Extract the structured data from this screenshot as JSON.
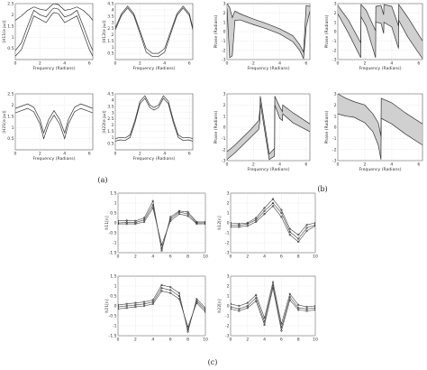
{
  "figure": {
    "captions": [
      "(a)",
      "(b)",
      "(c)"
    ]
  },
  "chart_data": [
    {
      "id": "a1",
      "type": "line",
      "group": "(a)",
      "title": "",
      "xlabel": "Frequency (Radians)",
      "ylabel": "|H11(e jω)|",
      "xlim": [
        0,
        6.28
      ],
      "ylim": [
        0,
        2.5
      ],
      "xticks": [
        0,
        2,
        4,
        6
      ],
      "yticks": [
        0.5,
        1,
        1.5,
        2,
        2.5
      ],
      "grid": true,
      "x": [
        0,
        0.5,
        1,
        1.5,
        2,
        2.5,
        3,
        3.14,
        3.5,
        4,
        4.5,
        5,
        5.5,
        6,
        6.28
      ],
      "series": [
        {
          "values": [
            1.75,
            1.95,
            2.2,
            2.35,
            2.25,
            2.2,
            2.45,
            2.5,
            2.45,
            2.2,
            2.25,
            2.35,
            2.2,
            1.95,
            1.75
          ]
        },
        {
          "values": [
            0.4,
            0.75,
            1.5,
            2.2,
            2.0,
            1.9,
            2.25,
            2.3,
            2.25,
            1.9,
            2.0,
            2.2,
            1.5,
            0.75,
            0.4
          ]
        },
        {
          "values": [
            0.15,
            0.45,
            1.2,
            1.95,
            1.8,
            1.65,
            2.05,
            2.1,
            2.05,
            1.65,
            1.8,
            1.95,
            1.2,
            0.45,
            0.15
          ]
        }
      ]
    },
    {
      "id": "a2",
      "type": "line",
      "group": "(a)",
      "title": "",
      "xlabel": "Frequency (Radians)",
      "ylabel": "|H12(e jω)|",
      "xlim": [
        0,
        6.28
      ],
      "ylim": [
        0,
        4.5
      ],
      "xticks": [
        0,
        2,
        4,
        6
      ],
      "yticks": [
        0.5,
        1,
        1.5,
        2,
        2.5,
        3,
        3.5,
        4,
        4.5
      ],
      "grid": true,
      "x": [
        0,
        0.5,
        1,
        1.5,
        2,
        2.5,
        3,
        3.5,
        4,
        4.5,
        5,
        5.5,
        6,
        6.28
      ],
      "series": [
        {
          "values": [
            2.55,
            3.7,
            4.3,
            3.7,
            2.3,
            0.9,
            0.5,
            0.5,
            0.9,
            2.3,
            3.7,
            4.3,
            3.7,
            2.55
          ]
        },
        {
          "values": [
            2.4,
            3.55,
            4.15,
            3.55,
            2.1,
            0.6,
            0.25,
            0.25,
            0.6,
            2.1,
            3.55,
            4.15,
            3.55,
            2.4
          ]
        }
      ]
    },
    {
      "id": "b1",
      "type": "area",
      "group": "(b)",
      "title": "",
      "xlabel": "Frequency (Radians)",
      "ylabel": "Phase (Radians)",
      "xlim": [
        0,
        6.28
      ],
      "ylim": [
        -3,
        3
      ],
      "xticks": [
        0,
        2,
        4,
        6
      ],
      "yticks": [
        -3,
        -2,
        -1,
        0,
        1,
        2,
        3
      ],
      "grid": true,
      "x": [
        0,
        0.2,
        0.4,
        0.6,
        1,
        2,
        3,
        4,
        5,
        5.5,
        5.8,
        6.0,
        6.28
      ],
      "series": [
        {
          "name": "upper",
          "values": [
            3,
            2.6,
            1.5,
            2.2,
            1.9,
            1.35,
            0.85,
            0.3,
            -0.45,
            -1.4,
            -2.2,
            2.8,
            2.7
          ]
        },
        {
          "name": "lower",
          "values": [
            2.5,
            -2.8,
            -2.6,
            1.2,
            1.25,
            0.75,
            0.3,
            -0.25,
            -1.1,
            -2.0,
            -2.9,
            0.5,
            2.2
          ]
        }
      ]
    },
    {
      "id": "b2",
      "type": "area",
      "group": "(b)",
      "title": "",
      "xlabel": "Frequency (Radians)",
      "ylabel": "Phase (Radians)",
      "xlim": [
        0,
        6.28
      ],
      "ylim": [
        -3,
        3
      ],
      "xticks": [
        0,
        2,
        4,
        6
      ],
      "yticks": [
        -3,
        -2,
        -1,
        0,
        1,
        2,
        3
      ],
      "grid": true,
      "x": [
        0,
        0.8,
        1.7,
        1.72,
        2.1,
        2.8,
        2.82,
        3.2,
        3.4,
        3.42,
        4,
        4.5,
        4.52,
        5.2,
        6.28
      ],
      "series": [
        {
          "name": "upper",
          "values": [
            2.8,
            1.2,
            -1.2,
            2.9,
            2.3,
            0.1,
            2.7,
            2.8,
            1.8,
            2.9,
            2.7,
            0.6,
            2.9,
            1.5,
            -1.0
          ]
        },
        {
          "name": "lower",
          "values": [
            1.9,
            -0.2,
            -2.8,
            1.6,
            0.6,
            -2.8,
            1.0,
            0.9,
            -0.2,
            1.0,
            0.5,
            -1.8,
            1.2,
            -0.6,
            -2.9
          ]
        }
      ]
    },
    {
      "id": "a3",
      "type": "line",
      "group": "(a)",
      "title": "",
      "xlabel": "Frequency (Radians)",
      "ylabel": "|H21(e jω)|",
      "xlim": [
        0,
        6.28
      ],
      "ylim": [
        0,
        2.5
      ],
      "xticks": [
        0,
        2,
        4,
        6
      ],
      "yticks": [
        0.5,
        1,
        1.5,
        2,
        2.5
      ],
      "grid": true,
      "x": [
        0,
        0.5,
        1,
        1.5,
        2,
        2.3,
        2.7,
        3.14,
        3.6,
        4.0,
        4.3,
        4.8,
        5.3,
        5.8,
        6.28
      ],
      "series": [
        {
          "values": [
            1.85,
            1.95,
            2.05,
            1.9,
            1.35,
            0.75,
            1.35,
            1.75,
            1.35,
            0.75,
            1.35,
            1.9,
            2.05,
            1.95,
            1.85
          ]
        },
        {
          "values": [
            1.65,
            1.75,
            1.85,
            1.7,
            1.15,
            0.5,
            1.15,
            1.55,
            1.15,
            0.5,
            1.15,
            1.7,
            1.85,
            1.75,
            1.65
          ]
        }
      ]
    },
    {
      "id": "a4",
      "type": "line",
      "group": "(a)",
      "title": "",
      "xlabel": "Frequency (Radians)",
      "ylabel": "|H22(e jω)|",
      "xlim": [
        0,
        6.28
      ],
      "ylim": [
        0,
        4.5
      ],
      "xticks": [
        0,
        2,
        4,
        6
      ],
      "yticks": [
        0.5,
        1,
        1.5,
        2,
        2.5,
        3,
        3.5,
        4,
        4.5
      ],
      "grid": true,
      "x": [
        0,
        0.4,
        0.8,
        1.2,
        1.6,
        2.0,
        2.4,
        2.8,
        3.14,
        3.5,
        3.9,
        4.3,
        4.7,
        5.1,
        5.5,
        5.9,
        6.28
      ],
      "series": [
        {
          "values": [
            0.9,
            1.0,
            0.95,
            1.2,
            2.4,
            3.9,
            4.35,
            3.6,
            3.4,
            3.6,
            4.35,
            3.9,
            2.4,
            1.2,
            0.95,
            1.0,
            0.9
          ]
        },
        {
          "values": [
            0.7,
            0.8,
            0.75,
            1.0,
            2.2,
            3.7,
            4.15,
            3.4,
            3.2,
            3.4,
            4.15,
            3.7,
            2.2,
            1.0,
            0.75,
            0.8,
            0.7
          ]
        }
      ]
    },
    {
      "id": "b3",
      "type": "area",
      "group": "(b)",
      "title": "",
      "xlabel": "Frequency (Radians)",
      "ylabel": "Phase (Radians)",
      "xlim": [
        0,
        6.28
      ],
      "ylim": [
        -3,
        3
      ],
      "xticks": [
        0,
        2,
        4,
        6
      ],
      "yticks": [
        -3,
        -2,
        -1,
        0,
        1,
        2,
        3
      ],
      "grid": true,
      "x": [
        0,
        0.6,
        1.2,
        1.8,
        2.4,
        2.5,
        2.52,
        3.2,
        3.6,
        3.62,
        4.0,
        4.2,
        4.22,
        5.0,
        6.28
      ],
      "series": [
        {
          "name": "upper",
          "values": [
            -2.2,
            -1.6,
            -0.9,
            -0.2,
            0.6,
            1.6,
            2.8,
            -2.4,
            -1.9,
            2.8,
            1.8,
            1.4,
            2.0,
            1.3,
            0.3
          ]
        },
        {
          "name": "lower",
          "values": [
            -2.9,
            -2.3,
            -1.6,
            -0.9,
            -0.2,
            0.6,
            2.2,
            -2.9,
            -2.6,
            2.0,
            0.8,
            0.6,
            1.2,
            0.4,
            -0.4
          ]
        }
      ]
    },
    {
      "id": "b4",
      "type": "area",
      "group": "(b)",
      "title": "",
      "xlabel": "Frequency (Radians)",
      "ylabel": "Phase (Radians)",
      "xlim": [
        0,
        6.28
      ],
      "ylim": [
        -3,
        3
      ],
      "xticks": [
        0,
        2,
        4,
        6
      ],
      "yticks": [
        -3,
        -2,
        -1,
        0,
        1,
        2,
        3
      ],
      "grid": true,
      "x": [
        0,
        0.6,
        1.2,
        2.0,
        2.6,
        3.0,
        3.2,
        3.22,
        4.0,
        5.0,
        6.28
      ],
      "series": [
        {
          "name": "upper",
          "values": [
            3.0,
            2.6,
            2.3,
            2.0,
            1.2,
            0.4,
            -0.8,
            2.6,
            2.2,
            1.3,
            0.3
          ]
        },
        {
          "name": "lower",
          "values": [
            1.2,
            1.0,
            0.9,
            0.4,
            -0.4,
            -1.6,
            -2.9,
            0.8,
            0.3,
            -0.6,
            -1.6
          ]
        }
      ]
    },
    {
      "id": "c1",
      "type": "line",
      "group": "(c)",
      "title": "",
      "xlabel": "",
      "ylabel": "h11[n]",
      "xlim": [
        0,
        10
      ],
      "ylim": [
        -1.5,
        1.5
      ],
      "xticks": [
        0,
        2,
        4,
        6,
        8,
        10
      ],
      "yticks": [
        -1.5,
        -1,
        -0.5,
        0,
        0.5,
        1,
        1.5
      ],
      "grid": true,
      "x": [
        0,
        1,
        2,
        3,
        4,
        5,
        6,
        7,
        8,
        9,
        10
      ],
      "series": [
        {
          "values": [
            0.1,
            0.12,
            0.1,
            0.25,
            1.1,
            -1.4,
            0.3,
            0.6,
            0.55,
            0.05,
            0.05
          ]
        },
        {
          "values": [
            0.0,
            0.02,
            0.02,
            0.15,
            0.9,
            -1.3,
            0.2,
            0.55,
            0.45,
            0.0,
            0.0
          ]
        },
        {
          "values": [
            -0.05,
            -0.05,
            -0.05,
            0.05,
            0.75,
            -1.1,
            0.1,
            0.45,
            0.35,
            -0.05,
            -0.05
          ]
        }
      ]
    },
    {
      "id": "c2",
      "type": "line",
      "group": "(c)",
      "title": "",
      "xlabel": "",
      "ylabel": "h12[n]",
      "xlim": [
        0,
        10
      ],
      "ylim": [
        -3,
        3
      ],
      "xticks": [
        0,
        2,
        4,
        6,
        8,
        10
      ],
      "yticks": [
        -3,
        -2,
        -1,
        0,
        1,
        2,
        3
      ],
      "grid": true,
      "x": [
        0,
        1,
        2,
        3,
        4,
        5,
        6,
        7,
        8,
        9,
        10
      ],
      "series": [
        {
          "values": [
            0.0,
            -0.1,
            0.0,
            0.5,
            1.5,
            2.4,
            1.3,
            -0.6,
            -1.2,
            -0.2,
            0.0
          ]
        },
        {
          "values": [
            -0.2,
            -0.25,
            -0.1,
            0.3,
            1.2,
            2.0,
            1.0,
            -0.9,
            -1.6,
            -0.5,
            -0.2
          ]
        },
        {
          "values": [
            -0.4,
            -0.4,
            -0.3,
            0.1,
            0.9,
            1.7,
            0.6,
            -1.2,
            -1.9,
            -0.8,
            -0.3
          ]
        }
      ]
    },
    {
      "id": "c3",
      "type": "line",
      "group": "(c)",
      "title": "",
      "xlabel": "",
      "ylabel": "h21[n]",
      "xlim": [
        0,
        10
      ],
      "ylim": [
        -1.5,
        1.5
      ],
      "xticks": [
        0,
        2,
        4,
        6,
        8,
        10
      ],
      "yticks": [
        -1.5,
        -1,
        -0.5,
        0,
        0.5,
        1,
        1.5
      ],
      "grid": true,
      "x": [
        0,
        1,
        2,
        3,
        4,
        5,
        6,
        7,
        8,
        9,
        10
      ],
      "series": [
        {
          "values": [
            0.05,
            0.1,
            0.15,
            0.2,
            0.3,
            1.05,
            0.95,
            0.65,
            -1.3,
            0.35,
            -0.1
          ]
        },
        {
          "values": [
            -0.05,
            0.0,
            0.05,
            0.1,
            0.2,
            0.9,
            0.8,
            0.5,
            -1.2,
            0.25,
            -0.2
          ]
        },
        {
          "values": [
            -0.15,
            -0.1,
            -0.05,
            0.0,
            0.1,
            0.75,
            0.65,
            0.35,
            -1.05,
            0.15,
            -0.3
          ]
        }
      ]
    },
    {
      "id": "c4",
      "type": "line",
      "group": "(c)",
      "title": "",
      "xlabel": "",
      "ylabel": "h22[n]",
      "xlim": [
        0,
        10
      ],
      "ylim": [
        -3,
        3
      ],
      "xticks": [
        0,
        2,
        4,
        6,
        8,
        10
      ],
      "yticks": [
        -3,
        -2,
        -1,
        0,
        1,
        2,
        3
      ],
      "grid": true,
      "x": [
        0,
        1,
        2,
        3,
        4,
        5,
        6,
        7,
        8,
        9,
        10
      ],
      "series": [
        {
          "values": [
            0.2,
            0.0,
            0.3,
            1.1,
            -1.2,
            2.4,
            -1.8,
            1.2,
            0.1,
            -0.1,
            0.0
          ]
        },
        {
          "values": [
            -0.1,
            -0.3,
            0.0,
            0.8,
            -1.6,
            2.1,
            -2.2,
            0.9,
            -0.2,
            -0.3,
            -0.2
          ]
        },
        {
          "values": [
            -0.3,
            -0.5,
            -0.2,
            0.5,
            -1.9,
            1.8,
            -2.5,
            0.6,
            -0.4,
            -0.5,
            -0.4
          ]
        }
      ]
    }
  ]
}
